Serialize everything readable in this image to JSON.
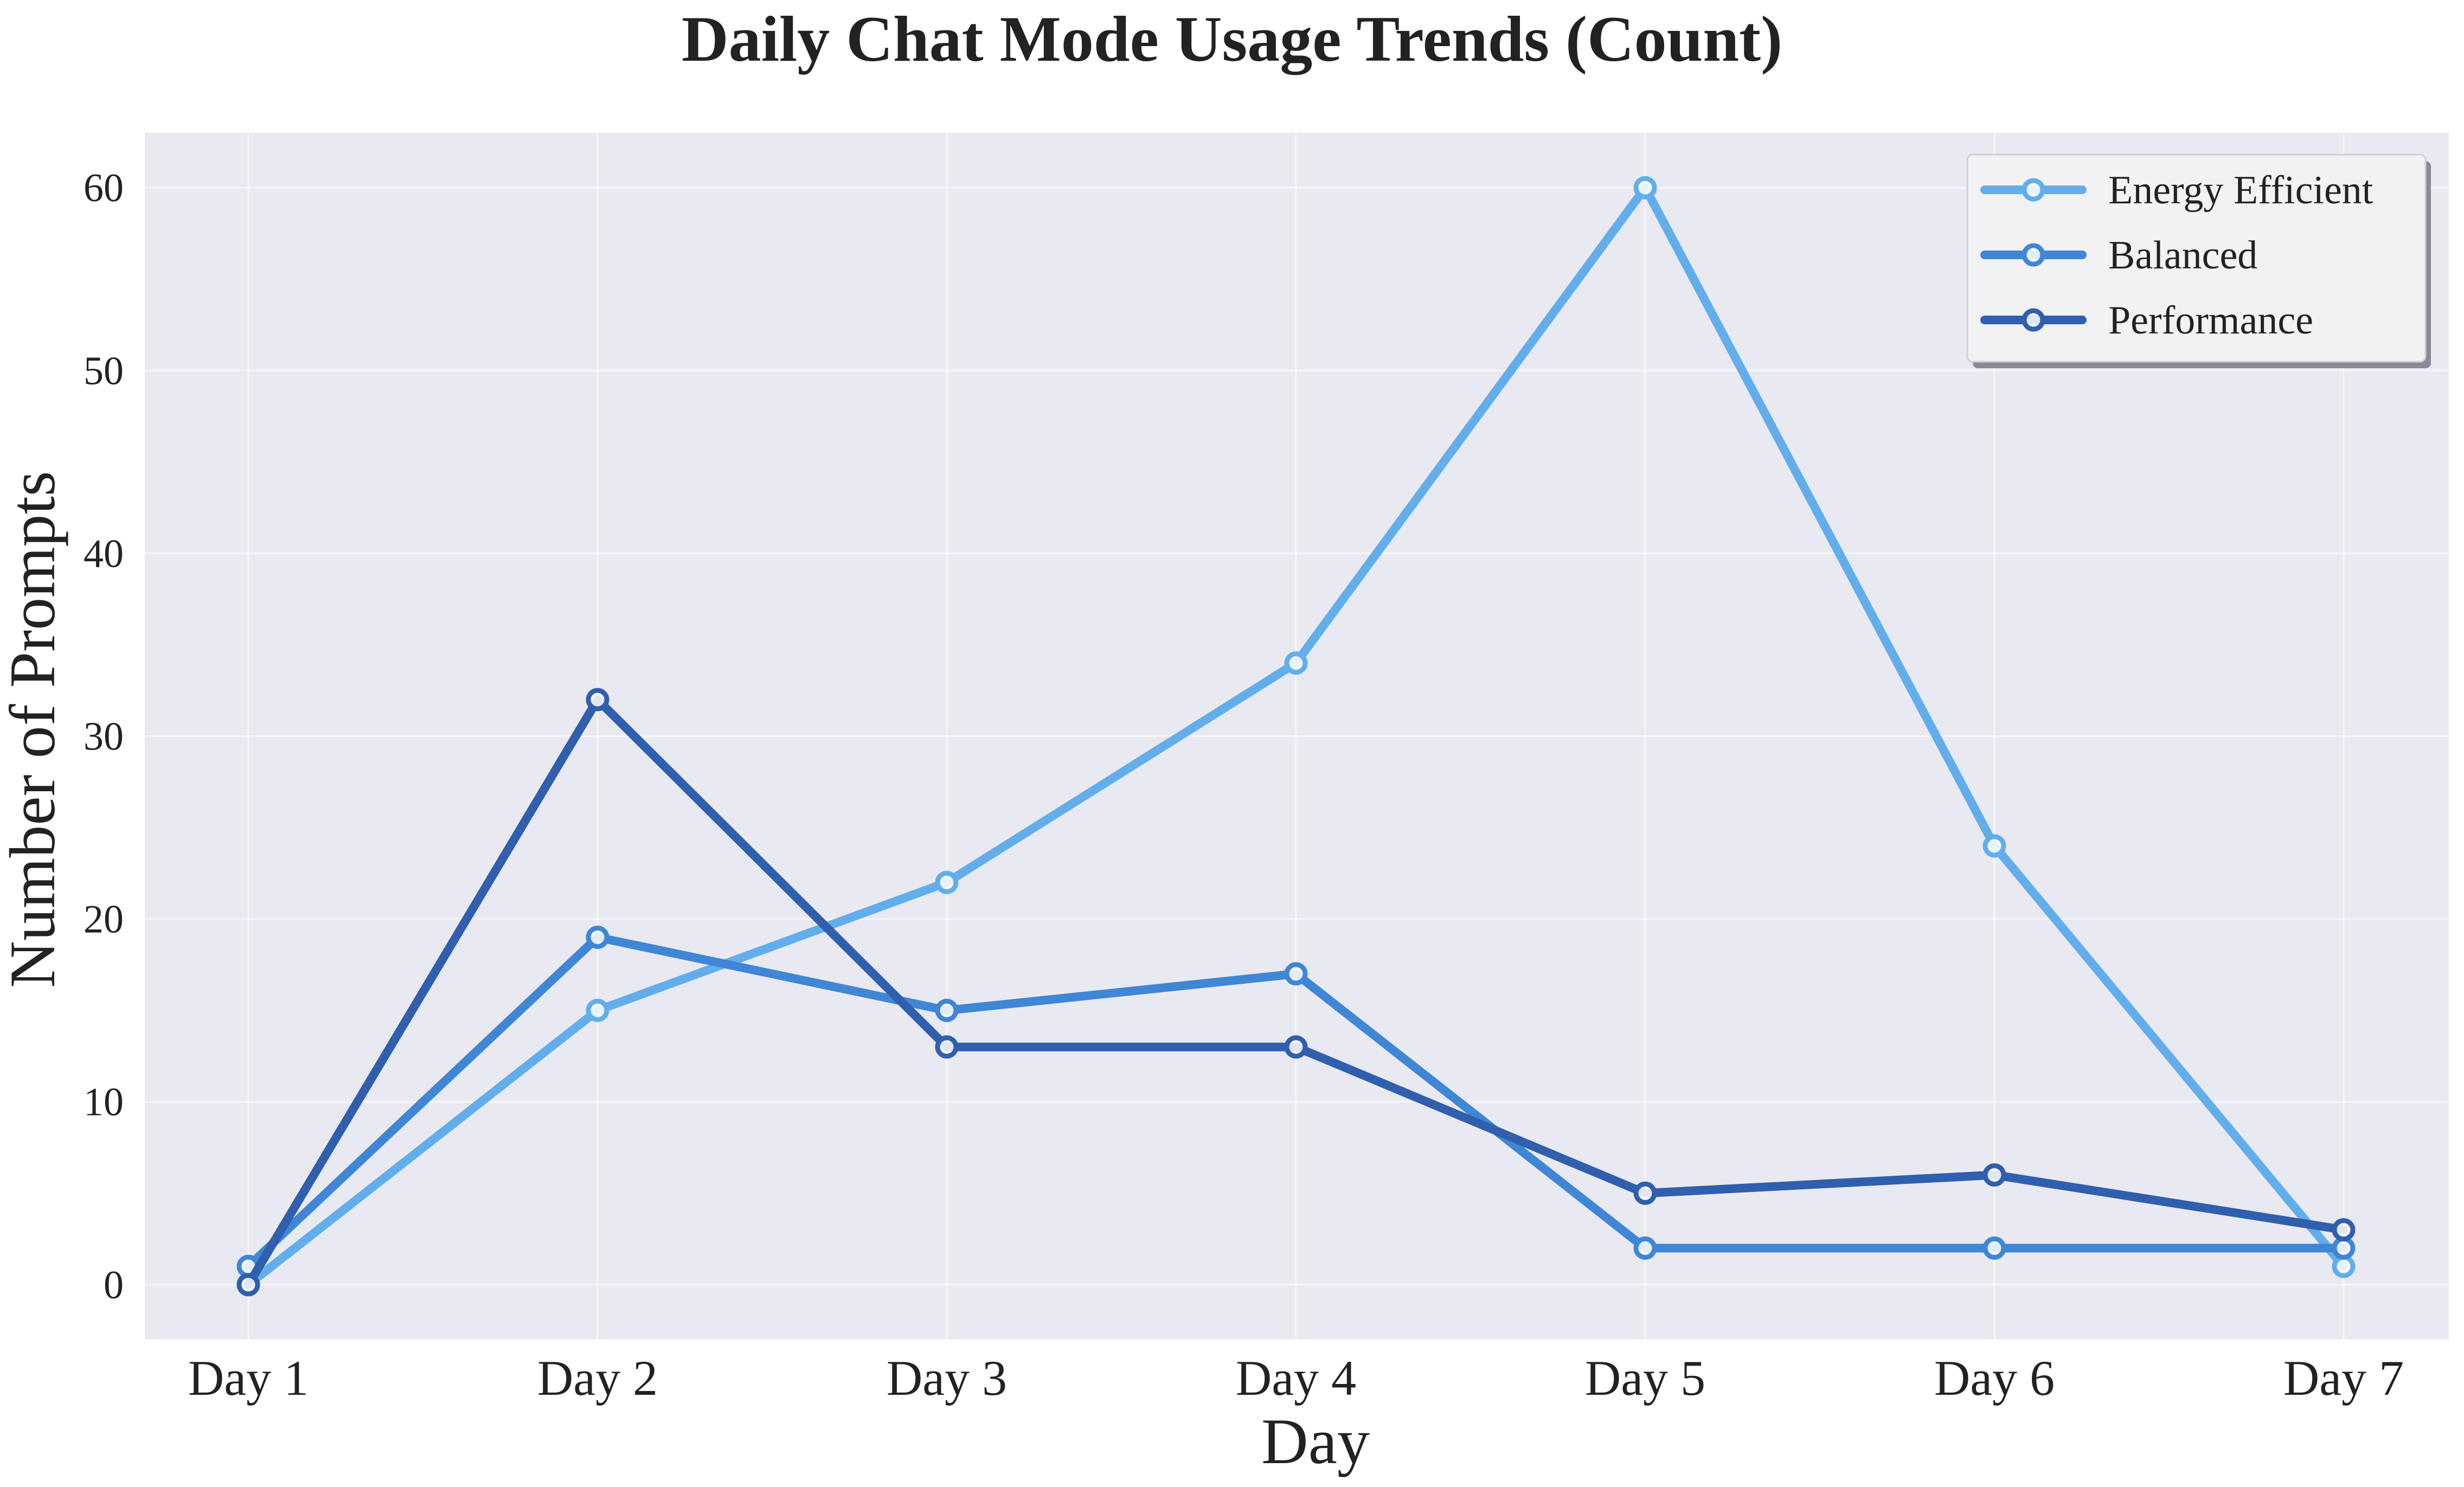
{
  "chart_data": {
    "type": "line",
    "title": "Daily Chat Mode Usage Trends (Count)",
    "xlabel": "Day",
    "ylabel": "Number of Prompts",
    "categories": [
      "Day 1",
      "Day 2",
      "Day 3",
      "Day 4",
      "Day 5",
      "Day 6",
      "Day 7"
    ],
    "yticks": [
      0,
      10,
      20,
      30,
      40,
      50,
      60
    ],
    "ylim": [
      -3,
      63
    ],
    "grid": true,
    "legend_position": "top-right",
    "background_color": "#e9e9f1",
    "series": [
      {
        "name": "Energy Efficient",
        "color": "#62aeec",
        "values": [
          0,
          15,
          22,
          34,
          60,
          24,
          1
        ]
      },
      {
        "name": "Balanced",
        "color": "#3f86d6",
        "values": [
          1,
          19,
          15,
          17,
          2,
          2,
          2
        ]
      },
      {
        "name": "Performance",
        "color": "#2f5fae",
        "values": [
          0,
          32,
          13,
          13,
          5,
          6,
          3
        ]
      }
    ]
  }
}
